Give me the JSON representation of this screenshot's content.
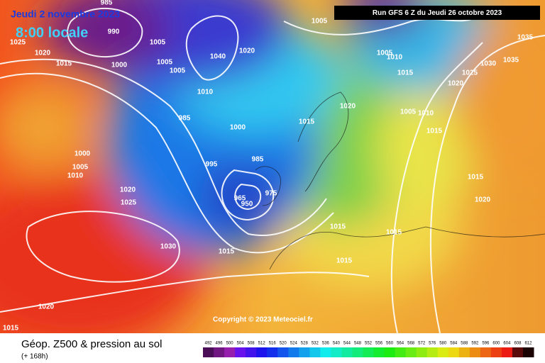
{
  "header": {
    "date": "Jeudi 2 novembre 2023",
    "time": "8:00 locale",
    "run": "Run GFS 6 Z du Jeudi 26 octobre 2023"
  },
  "copyright": "Copyright © 2023 Meteociel.fr",
  "footer": {
    "title": "Géop. Z500 & pression au sol",
    "subtitle": "(+ 168h)"
  },
  "legend": {
    "ticks": [
      492,
      496,
      500,
      504,
      508,
      512,
      516,
      520,
      524,
      528,
      532,
      536,
      540,
      544,
      548,
      552,
      556,
      560,
      564,
      568,
      572,
      576,
      580,
      584,
      588,
      592,
      596,
      600,
      604,
      608,
      612
    ]
  },
  "isobars": {
    "labels": [
      "985",
      "990",
      "1005",
      "1000",
      "1015",
      "1020",
      "1025",
      "1005",
      "1005",
      "1040",
      "1020",
      "1010",
      "985",
      "1000",
      "995",
      "985",
      "965",
      "950",
      "975",
      "1015",
      "1020",
      "1000",
      "1005",
      "1010",
      "1020",
      "1025",
      "1030",
      "1015",
      "1015",
      "1015",
      "1015",
      "1015",
      "1020",
      "1015",
      "1005",
      "1010",
      "1015",
      "1010",
      "1005",
      "1030",
      "1035",
      "1025",
      "1020",
      "1035",
      "1005",
      "1020",
      "1015"
    ]
  }
}
